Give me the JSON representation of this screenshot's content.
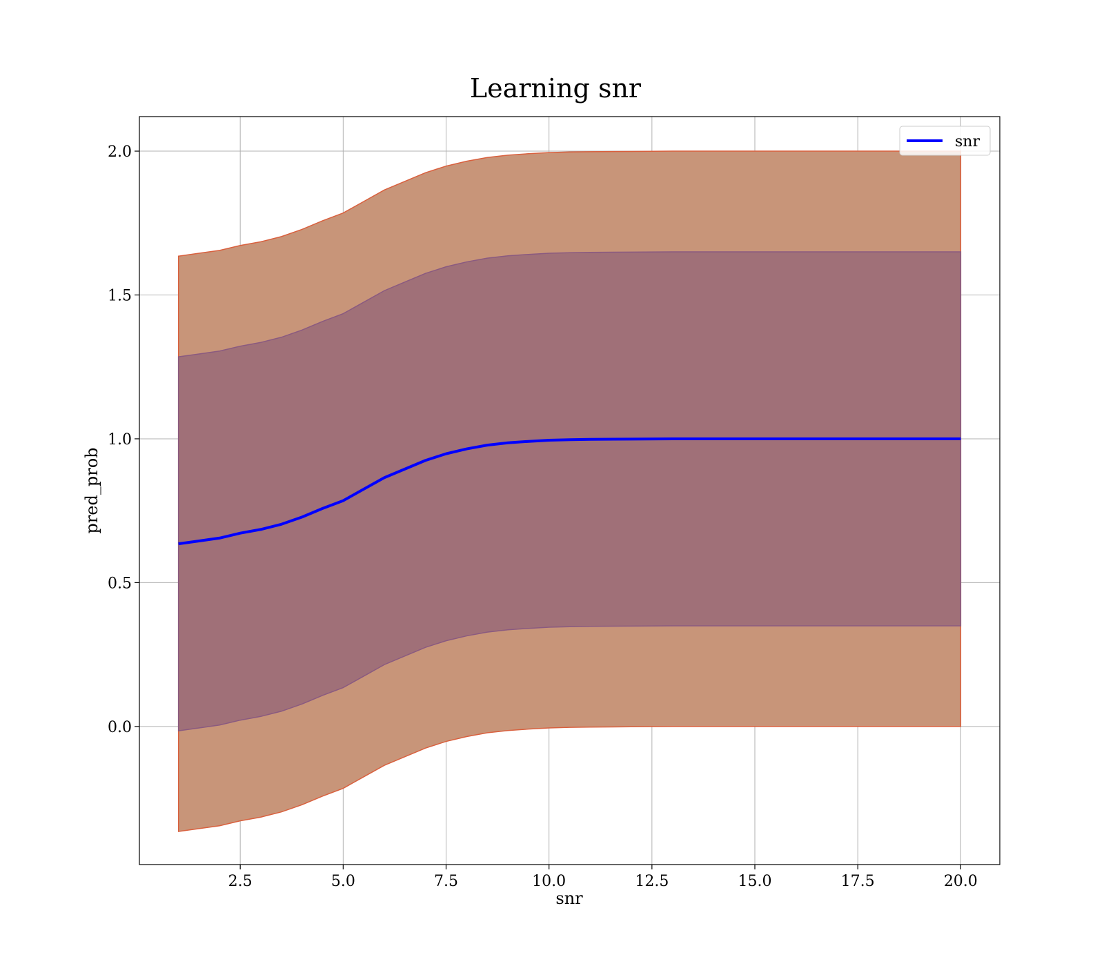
{
  "chart_data": {
    "type": "line",
    "title": "Learning snr",
    "xlabel": "snr",
    "ylabel": "pred_prob",
    "xlim": [
      0.05,
      20.95
    ],
    "ylim": [
      -0.48,
      2.12
    ],
    "xticks": [
      2.5,
      5.0,
      7.5,
      10.0,
      12.5,
      15.0,
      17.5,
      20.0
    ],
    "xtick_labels": [
      "2.5",
      "5.0",
      "7.5",
      "10.0",
      "12.5",
      "15.0",
      "17.5",
      "20.0"
    ],
    "yticks": [
      0.0,
      0.5,
      1.0,
      1.5,
      2.0
    ],
    "ytick_labels": [
      "0.0",
      "0.5",
      "1.0",
      "1.5",
      "2.0"
    ],
    "grid": true,
    "legend_position": "top-right",
    "series": [
      {
        "name": "snr",
        "color": "#0000ff",
        "x": [
          1.0,
          1.5,
          2.0,
          2.5,
          3.0,
          3.5,
          4.0,
          4.5,
          5.0,
          5.5,
          6.0,
          6.5,
          7.0,
          7.5,
          8.0,
          8.5,
          9.0,
          9.5,
          10.0,
          10.5,
          11.0,
          12.0,
          13.0,
          14.0,
          15.0,
          16.0,
          17.0,
          18.0,
          19.0,
          20.0
        ],
        "y": [
          0.635,
          0.645,
          0.655,
          0.672,
          0.685,
          0.703,
          0.728,
          0.758,
          0.785,
          0.825,
          0.865,
          0.895,
          0.925,
          0.948,
          0.965,
          0.978,
          0.986,
          0.991,
          0.995,
          0.997,
          0.998,
          0.999,
          1.0,
          1.0,
          1.0,
          1.0,
          1.0,
          1.0,
          1.0,
          1.0
        ]
      }
    ],
    "bands": [
      {
        "name": "outer_band",
        "color": "#c89579",
        "edge_color": "#d9603e",
        "half_width": 1.0
      },
      {
        "name": "inner_band",
        "color": "#a07078",
        "edge_color": "#8a5a80",
        "half_width": 0.65
      }
    ]
  }
}
